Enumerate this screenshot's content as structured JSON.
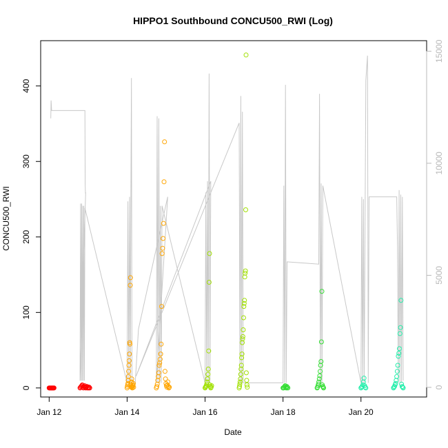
{
  "chart_data": {
    "type": "scatter",
    "title": "HIPPO1 Southbound CONCU500_RWI (Log)",
    "xlabel": "Date",
    "ylabel": "CONCU500_RWI",
    "xlim": [
      "2009-01-11T18:46",
      "2009-01-21T16:26"
    ],
    "ylim": [
      -12,
      460
    ],
    "y_ticks": [
      0,
      100,
      200,
      300,
      400
    ],
    "x_ticks": [
      {
        "date": "2009-01-12",
        "label": "Jan 12"
      },
      {
        "date": "2009-01-14",
        "label": "Jan 14"
      },
      {
        "date": "2009-01-16",
        "label": "Jan 16"
      },
      {
        "date": "2009-01-18",
        "label": "Jan 18"
      },
      {
        "date": "2009-01-20",
        "label": "Jan 20"
      }
    ],
    "secondary_axis": {
      "label": "",
      "ylim": [
        -430,
        15470
      ],
      "ticks": [
        0,
        5000,
        10000,
        15000
      ],
      "color": "#b8b8b8"
    },
    "grid": false,
    "legend": "none",
    "altitude_trace": [
      [
        "2009-01-12T01:00",
        12000
      ],
      [
        "2009-01-12T01:10",
        12800
      ],
      [
        "2009-01-12T01:20",
        12600
      ],
      [
        "2009-01-12T01:30",
        12350
      ],
      [
        "2009-01-12T22:00",
        12350
      ],
      [
        "2009-01-12T22:10",
        9000
      ],
      [
        "2009-01-12T22:20",
        8650
      ],
      [
        "2009-01-12T22:30",
        8700
      ],
      [
        "2009-01-12T19:00",
        300
      ],
      [
        "2009-01-12T19:20",
        8200
      ],
      [
        "2009-01-12T19:40",
        300
      ],
      [
        "2009-01-12T20:00",
        8200
      ],
      [
        "2009-01-12T20:20",
        300
      ],
      [
        "2009-01-12T20:40",
        8100
      ],
      [
        "2009-01-12T21:00",
        300
      ],
      [
        "2009-01-12T21:20",
        8100
      ],
      [
        "2009-01-12T21:40",
        300
      ],
      [
        "2009-01-12T22:00",
        8000
      ],
      [
        "2009-01-14T00:00",
        200
      ],
      [
        "2009-01-14T00:30",
        8300
      ],
      [
        "2009-01-14T01:00",
        200
      ],
      [
        "2009-01-14T01:30",
        8500
      ],
      [
        "2009-01-14T02:00",
        200
      ],
      [
        "2009-01-14T02:20",
        8700
      ],
      [
        "2009-01-14T02:40",
        13800
      ],
      [
        "2009-01-14T03:00",
        200
      ],
      [
        "2009-01-14T05:00",
        200
      ],
      [
        "2009-01-14T07:00",
        2600
      ],
      [
        "2009-01-15T01:00",
        8500
      ],
      [
        "2009-01-14T18:00",
        200
      ],
      [
        "2009-01-14T18:30",
        12100
      ],
      [
        "2009-01-14T19:00",
        200
      ],
      [
        "2009-01-14T19:30",
        12000
      ],
      [
        "2009-01-14T20:00",
        200
      ],
      [
        "2009-01-14T20:30",
        8100
      ],
      [
        "2009-01-14T21:00",
        200
      ],
      [
        "2009-01-14T21:30",
        8100
      ],
      [
        "2009-01-16T00:00",
        200
      ],
      [
        "2009-01-16T00:30",
        8700
      ],
      [
        "2009-01-16T01:00",
        200
      ],
      [
        "2009-01-16T01:30",
        9200
      ],
      [
        "2009-01-16T02:00",
        200
      ],
      [
        "2009-01-16T02:30",
        14000
      ],
      [
        "2009-01-16T03:00",
        200
      ],
      [
        "2009-01-16T03:30",
        9200
      ],
      [
        "2009-01-14T05:30",
        500
      ],
      [
        "2009-01-16T21:00",
        11800
      ],
      [
        "2009-01-16T21:30",
        200
      ],
      [
        "2009-01-16T22:00",
        13000
      ],
      [
        "2009-01-16T22:30",
        200
      ],
      [
        "2009-01-16T23:00",
        12300
      ],
      [
        "2009-01-16T23:30",
        200
      ],
      [
        "2009-01-18T00:00",
        200
      ],
      [
        "2009-01-18T00:30",
        9000
      ],
      [
        "2009-01-18T01:00",
        200
      ],
      [
        "2009-01-18T01:30",
        13500
      ],
      [
        "2009-01-18T02:00",
        200
      ],
      [
        "2009-01-18T02:30",
        5600
      ],
      [
        "2009-01-18T22:00",
        5500
      ],
      [
        "2009-01-18T22:30",
        13100
      ],
      [
        "2009-01-18T23:00",
        200
      ],
      [
        "2009-01-18T23:30",
        9100
      ],
      [
        "2009-01-19T00:00",
        200
      ],
      [
        "2009-01-19T00:30",
        9000
      ],
      [
        "2009-01-20T00:00",
        200
      ],
      [
        "2009-01-20T00:30",
        8500
      ],
      [
        "2009-01-20T01:00",
        200
      ],
      [
        "2009-01-20T01:30",
        8400
      ],
      [
        "2009-01-20T02:00",
        200
      ],
      [
        "2009-01-20T03:00",
        13700
      ],
      [
        "2009-01-20T04:00",
        14800
      ],
      [
        "2009-01-20T04:30",
        200
      ],
      [
        "2009-01-20T05:00",
        8500
      ],
      [
        "2009-01-20T22:00",
        8500
      ],
      [
        "2009-01-20T22:30",
        6300
      ],
      [
        "2009-01-20T23:00",
        200
      ],
      [
        "2009-01-20T23:30",
        8800
      ],
      [
        "2009-01-21T00:00",
        200
      ],
      [
        "2009-01-21T00:30",
        8600
      ],
      [
        "2009-01-21T01:00",
        200
      ],
      [
        "2009-01-21T01:30",
        8500
      ],
      [
        "2009-01-21T02:00",
        300
      ]
    ],
    "altitude_color": "#c8c8c8",
    "series": [
      {
        "color": "#ff0000",
        "flights": [
          {
            "start": "2009-01-12T00:00",
            "end": "2009-01-12T03:00",
            "values": [
              0,
              0,
              0,
              0,
              0,
              0,
              0,
              0,
              0,
              0
            ]
          },
          {
            "start": "2009-01-12T19:00",
            "end": "2009-01-13T01:00",
            "values": [
              0,
              1,
              2,
              3,
              4,
              1,
              0,
              2,
              3,
              1,
              0,
              1,
              2,
              0,
              1,
              0,
              1,
              0
            ]
          }
        ]
      },
      {
        "color": "#ffa500",
        "flights": [
          {
            "start": "2009-01-14T00:00",
            "end": "2009-01-14T04:00",
            "values": [
              0,
              2,
              4,
              6,
              10,
              15,
              22,
              30,
              36,
              45,
              60,
              58,
              136,
              146,
              5,
              3,
              1,
              8,
              12,
              2,
              0,
              1,
              3,
              4,
              6,
              1
            ]
          },
          {
            "start": "2009-01-14T18:00",
            "end": "2009-01-15T02:00",
            "values": [
              0,
              2,
              5,
              10,
              15,
              20,
              30,
              33,
              38,
              45,
              58,
              108,
              178,
              185,
              198,
              218,
              273,
              326,
              22,
              12,
              6,
              3,
              1,
              4,
              8,
              2,
              0,
              1
            ]
          }
        ]
      },
      {
        "color": "#a0e000",
        "flights": [
          {
            "start": "2009-01-16T00:00",
            "end": "2009-01-16T04:00",
            "values": [
              0,
              1,
              2,
              3,
              5,
              8,
              12,
              18,
              25,
              49,
              140,
              178,
              4,
              2,
              0,
              1,
              3
            ]
          },
          {
            "start": "2009-01-16T21:00",
            "end": "2009-01-17T02:00",
            "values": [
              0,
              2,
              5,
              8,
              12,
              18,
              25,
              30,
              40,
              45,
              60,
              65,
              68,
              77,
              93,
              108,
              112,
              116,
              147,
              152,
              155,
              236,
              441,
              20,
              10,
              4,
              1
            ]
          }
        ]
      },
      {
        "color": "#33dd33",
        "flights": [
          {
            "start": "2009-01-18T00:00",
            "end": "2009-01-18T03:00",
            "values": [
              0,
              0,
              1,
              2,
              3,
              1,
              0,
              2,
              1,
              0
            ]
          },
          {
            "start": "2009-01-18T21:00",
            "end": "2009-01-19T01:00",
            "values": [
              0,
              1,
              3,
              5,
              8,
              12,
              16,
              22,
              30,
              35,
              61,
              128,
              4,
              2,
              1,
              0
            ]
          }
        ]
      },
      {
        "color": "#22eeaa",
        "flights": [
          {
            "start": "2009-01-20T00:00",
            "end": "2009-01-20T03:00",
            "values": [
              0,
              1,
              2,
              4,
              8,
              13,
              3,
              1,
              0
            ]
          },
          {
            "start": "2009-01-20T20:00",
            "end": "2009-01-21T02:00",
            "values": [
              0,
              1,
              2,
              4,
              6,
              10,
              15,
              22,
              30,
              42,
              46,
              52,
              72,
              80,
              116,
              5,
              2,
              1,
              0
            ]
          }
        ]
      }
    ]
  }
}
